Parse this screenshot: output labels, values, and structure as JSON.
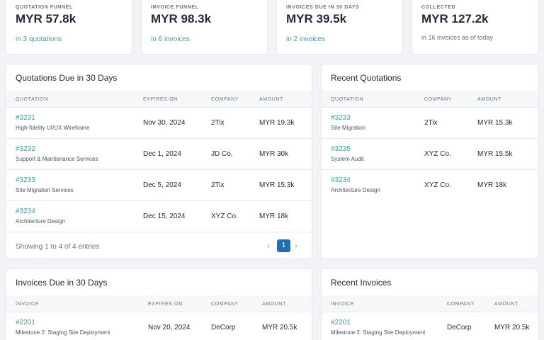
{
  "stats": [
    {
      "label": "QUOTATION FUNNEL",
      "value": "MYR 57.8k",
      "sub": "in 3 quotations"
    },
    {
      "label": "INVOICE FUNNEL",
      "value": "MYR 98.3k",
      "sub": "in 6 invoices"
    },
    {
      "label": "INVOICES DUE IN 30 DAYS",
      "value": "MYR 39.5k",
      "sub": "in 2 invoices"
    },
    {
      "label": "COLLECTED",
      "value": "MYR 127.2k",
      "sub": "in 16 invoices as of today"
    }
  ],
  "quotations_due": {
    "title": "Quotations Due in 30 Days",
    "headers": [
      "QUOTATION",
      "EXPIRES ON",
      "COMPANY",
      "AMOUNT"
    ],
    "rows": [
      {
        "id": "#3231",
        "desc": "High-fidelity UI/UX Wireframe",
        "date": "Nov 30, 2024",
        "company": "2Tix",
        "amount": "MYR 19.3k"
      },
      {
        "id": "#3232",
        "desc": "Support & Maintenance Services",
        "date": "Dec 1, 2024",
        "company": "JD Co.",
        "amount": "MYR 30k"
      },
      {
        "id": "#3233",
        "desc": "Site Migration Services",
        "date": "Dec 5, 2024",
        "company": "2Tix",
        "amount": "MYR 15.3k"
      },
      {
        "id": "#3234",
        "desc": "Architecture Design",
        "date": "Dec 15, 2024",
        "company": "XYZ Co.",
        "amount": "MYR 18k"
      }
    ],
    "footer": "Showing 1 to 4 of 4 entries",
    "page": "1",
    "prev": "‹",
    "next": "›"
  },
  "recent_quotations": {
    "title": "Recent Quotations",
    "headers": [
      "QUOTATION",
      "COMPANY",
      "AMOUNT"
    ],
    "rows": [
      {
        "id": "#3233",
        "desc": "Site Migration",
        "company": "2Tix",
        "amount": "MYR 15.3k"
      },
      {
        "id": "#3235",
        "desc": "System Audit",
        "company": "XYZ Co.",
        "amount": "MYR 15.5k"
      },
      {
        "id": "#3234",
        "desc": "Architecture Design",
        "company": "XYZ Co.",
        "amount": "MYR 18k"
      }
    ]
  },
  "invoices_due": {
    "title": "Invoices Due in 30 Days",
    "headers": [
      "INVOICE",
      "EXPIRES ON",
      "COMPANY",
      "AMOUNT"
    ],
    "rows": [
      {
        "id": "#2201",
        "desc": "Milestone 2: Staging Site Deployment",
        "date": "Nov 20, 2024",
        "company": "DeCorp",
        "amount": "MYR 20.5k"
      }
    ]
  },
  "recent_invoices": {
    "title": "Recent Invoices",
    "headers": [
      "INVOICE",
      "COMPANY",
      "AMOUNT"
    ],
    "rows": [
      {
        "id": "#2201",
        "desc": "Milestone 2: Staging Site Deployment",
        "company": "DeCorp",
        "amount": "MYR 20.5k"
      }
    ]
  },
  "colors": {
    "accent": "#3a9ca8",
    "page_active": "#1d6fb8",
    "background": "#f1f3f6"
  }
}
